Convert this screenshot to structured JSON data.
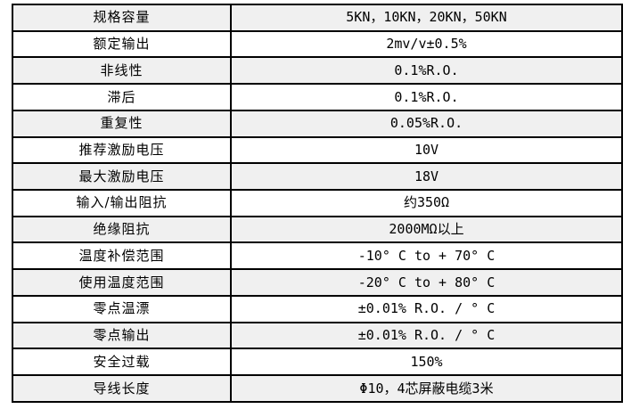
{
  "table": {
    "name": "sensor-specification-table",
    "columns": [
      "parameter",
      "value"
    ],
    "colors": {
      "border": "#000000",
      "text": "#000000",
      "row_bg": "#ffffff",
      "row_alt_bg": "#f0f0f0",
      "page_bg": "#ffffff"
    },
    "rows": [
      {
        "label": "规格容量",
        "value": "5KN，10KN，20KN，50KN"
      },
      {
        "label": "额定输出",
        "value": "2mv/v±0.5%"
      },
      {
        "label": "非线性",
        "value": "0.1%R.O."
      },
      {
        "label": "滞后",
        "value": "0.1%R.O."
      },
      {
        "label": "重复性",
        "value": "0.05%R.O."
      },
      {
        "label": "推荐激励电压",
        "value": "10V"
      },
      {
        "label": "最大激励电压",
        "value": "18V"
      },
      {
        "label": "输入/输出阻抗",
        "value": "约350Ω"
      },
      {
        "label": "绝缘阻抗",
        "value": "2000MΩ以上"
      },
      {
        "label": "温度补偿范围",
        "value": "-10° C to + 70° C"
      },
      {
        "label": "使用温度范围",
        "value": "-20° C to + 80° C"
      },
      {
        "label": "零点温漂",
        "value": "±0.01% R.O. / ° C"
      },
      {
        "label": "零点输出",
        "value": "±0.01% R.O. / ° C"
      },
      {
        "label": "安全过载",
        "value": "150%"
      },
      {
        "label": "导线长度",
        "value": "Φ10，4芯屏蔽电缆3米"
      }
    ]
  }
}
